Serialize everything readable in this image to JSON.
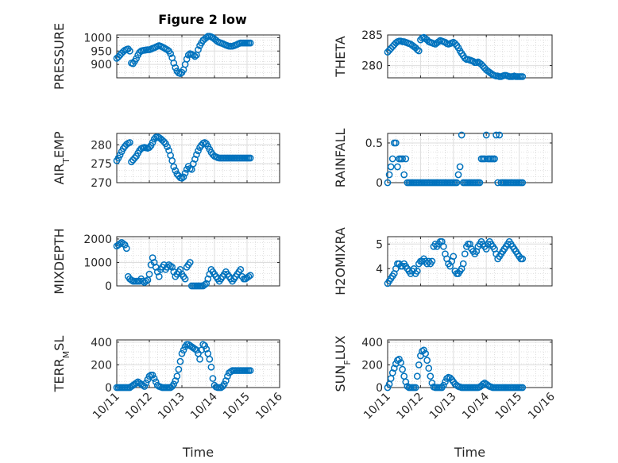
{
  "figure_title": "Figure 2 low",
  "colors": {
    "marker": "#0072BD",
    "grid": "#c8c8c8",
    "axis": "#262626"
  },
  "x_tick_labels": [
    "10/11",
    "10/12",
    "10/13",
    "10/14",
    "10/15",
    "10/16"
  ],
  "x_axis_label": "Time",
  "chart_data": [
    {
      "type": "scatter",
      "ylabel": "PRESSURE",
      "ylim": [
        850,
        1010
      ],
      "yticks": [
        900,
        950,
        1000
      ],
      "xlabel": "",
      "grid": true,
      "x": [
        0.0,
        0.05,
        0.1,
        0.15,
        0.2,
        0.25,
        0.3,
        0.35,
        0.4,
        0.45,
        0.5,
        0.55,
        0.6,
        0.65,
        0.7,
        0.75,
        0.8,
        0.85,
        0.9,
        0.95,
        1.0,
        1.05,
        1.1,
        1.15,
        1.2,
        1.25,
        1.3,
        1.35,
        1.4,
        1.45,
        1.5,
        1.55,
        1.6,
        1.65,
        1.7,
        1.75,
        1.8,
        1.85,
        1.9,
        1.95,
        2.0,
        2.05,
        2.1,
        2.15,
        2.2,
        2.25,
        2.3,
        2.35,
        2.4,
        2.45,
        2.5,
        2.55,
        2.6,
        2.65,
        2.7,
        2.75,
        2.8,
        2.85,
        2.9,
        2.95,
        3.0,
        3.05,
        3.1,
        3.15,
        3.2,
        3.25,
        3.3,
        3.35,
        3.4,
        3.45,
        3.5,
        3.55,
        3.6,
        3.65,
        3.7,
        3.75,
        3.8,
        3.85,
        3.9,
        3.95,
        4.0,
        4.05,
        4.1
      ],
      "y": [
        923,
        928,
        935,
        942,
        948,
        953,
        956,
        958,
        950,
        905,
        903,
        912,
        922,
        935,
        945,
        950,
        952,
        953,
        954,
        955,
        955,
        957,
        960,
        962,
        965,
        968,
        970,
        968,
        965,
        962,
        958,
        955,
        950,
        940,
        925,
        905,
        888,
        875,
        868,
        866,
        870,
        880,
        900,
        920,
        935,
        940,
        938,
        935,
        930,
        935,
        955,
        970,
        980,
        990,
        995,
        1000,
        1005,
        1005,
        1003,
        1000,
        995,
        990,
        985,
        982,
        980,
        978,
        975,
        972,
        970,
        968,
        968,
        968,
        970,
        972,
        975,
        978,
        980,
        980,
        980,
        980,
        980,
        980,
        980
      ]
    },
    {
      "type": "scatter",
      "ylabel": "THETA",
      "ylim": [
        278,
        285
      ],
      "yticks": [
        280,
        285
      ],
      "xlabel": "",
      "grid": true,
      "x": [
        0.0,
        0.05,
        0.1,
        0.15,
        0.2,
        0.25,
        0.3,
        0.35,
        0.4,
        0.45,
        0.5,
        0.55,
        0.6,
        0.65,
        0.7,
        0.75,
        0.8,
        0.85,
        0.9,
        0.95,
        1.0,
        1.05,
        1.1,
        1.15,
        1.2,
        1.25,
        1.3,
        1.35,
        1.4,
        1.45,
        1.5,
        1.55,
        1.6,
        1.65,
        1.7,
        1.75,
        1.8,
        1.85,
        1.9,
        1.95,
        2.0,
        2.05,
        2.1,
        2.15,
        2.2,
        2.25,
        2.3,
        2.35,
        2.4,
        2.45,
        2.5,
        2.55,
        2.6,
        2.65,
        2.7,
        2.75,
        2.8,
        2.85,
        2.9,
        2.95,
        3.0,
        3.05,
        3.1,
        3.15,
        3.2,
        3.25,
        3.3,
        3.35,
        3.4,
        3.45,
        3.5,
        3.55,
        3.6,
        3.65,
        3.7,
        3.75,
        3.8,
        3.85,
        3.9,
        3.95,
        4.0,
        4.05,
        4.1
      ],
      "y": [
        282.2,
        282.5,
        282.8,
        283.1,
        283.4,
        283.7,
        283.9,
        284.0,
        284.0,
        283.9,
        283.9,
        283.8,
        283.7,
        283.6,
        283.5,
        283.3,
        283.1,
        282.9,
        282.6,
        282.4,
        284.2,
        284.5,
        284.6,
        284.4,
        284.2,
        283.9,
        283.8,
        283.7,
        283.6,
        283.5,
        283.7,
        283.9,
        284.1,
        284.0,
        283.9,
        283.8,
        283.6,
        283.5,
        283.6,
        283.7,
        283.8,
        283.6,
        283.3,
        282.9,
        282.4,
        282.0,
        281.6,
        281.2,
        281.0,
        281.0,
        280.9,
        280.8,
        280.7,
        280.5,
        280.5,
        280.6,
        280.4,
        280.2,
        279.9,
        279.6,
        279.3,
        279.1,
        278.9,
        278.7,
        278.5,
        278.4,
        278.3,
        278.3,
        278.2,
        278.2,
        278.3,
        278.4,
        278.4,
        278.3,
        278.2,
        278.2,
        278.2,
        278.3,
        278.2,
        278.2,
        278.2,
        278.2,
        278.2
      ]
    },
    {
      "type": "scatter",
      "ylabel": "AIR_TEMP",
      "ylim": [
        270,
        283
      ],
      "yticks": [
        270,
        275,
        280
      ],
      "xlabel": "",
      "grid": true,
      "x": [
        0.0,
        0.05,
        0.1,
        0.15,
        0.2,
        0.25,
        0.3,
        0.35,
        0.4,
        0.45,
        0.5,
        0.55,
        0.6,
        0.65,
        0.7,
        0.75,
        0.8,
        0.85,
        0.9,
        0.95,
        1.0,
        1.05,
        1.1,
        1.15,
        1.2,
        1.25,
        1.3,
        1.35,
        1.4,
        1.45,
        1.5,
        1.55,
        1.6,
        1.65,
        1.7,
        1.75,
        1.8,
        1.85,
        1.9,
        1.95,
        2.0,
        2.05,
        2.1,
        2.15,
        2.2,
        2.25,
        2.3,
        2.35,
        2.4,
        2.45,
        2.5,
        2.55,
        2.6,
        2.65,
        2.7,
        2.75,
        2.8,
        2.85,
        2.9,
        2.95,
        3.0,
        3.05,
        3.1,
        3.15,
        3.2,
        3.25,
        3.3,
        3.35,
        3.4,
        3.45,
        3.5,
        3.55,
        3.6,
        3.65,
        3.7,
        3.75,
        3.8,
        3.85,
        3.9,
        3.95,
        4.0,
        4.05,
        4.1
      ],
      "y": [
        275.8,
        276.5,
        277.3,
        278.2,
        279.0,
        279.6,
        280.1,
        280.4,
        280.6,
        275.5,
        276.0,
        276.5,
        277.0,
        277.8,
        278.5,
        279.0,
        279.2,
        279.3,
        279.2,
        279.1,
        279.3,
        279.8,
        280.6,
        281.5,
        282.0,
        282.1,
        281.9,
        281.6,
        281.2,
        280.8,
        280.3,
        279.5,
        278.5,
        277.2,
        275.8,
        274.2,
        273.2,
        272.3,
        271.8,
        271.3,
        271.2,
        271.5,
        272.5,
        273.5,
        274.3,
        273.7,
        273.5,
        275.0,
        276.2,
        277.4,
        278.4,
        279.3,
        279.9,
        280.4,
        280.6,
        280.3,
        279.6,
        278.8,
        278.0,
        277.4,
        277.0,
        276.8,
        276.6,
        276.5,
        276.5,
        276.5,
        276.5,
        276.5,
        276.5,
        276.5,
        276.5,
        276.5,
        276.5,
        276.5,
        276.5,
        276.5,
        276.5,
        276.5,
        276.5,
        276.5,
        276.5,
        276.5,
        276.5
      ]
    },
    {
      "type": "scatter",
      "ylabel": "RAINFALL",
      "ylim": [
        0,
        0.62
      ],
      "yticks": [
        0,
        0.5
      ],
      "xlabel": "",
      "grid": true,
      "x": [
        0.0,
        0.05,
        0.1,
        0.15,
        0.2,
        0.25,
        0.3,
        0.35,
        0.4,
        0.45,
        0.5,
        0.55,
        0.6,
        0.65,
        0.7,
        0.75,
        0.8,
        0.85,
        0.9,
        0.95,
        1.0,
        1.05,
        1.1,
        1.15,
        1.2,
        1.25,
        1.3,
        1.35,
        1.4,
        1.45,
        1.5,
        1.55,
        1.6,
        1.65,
        1.7,
        1.75,
        1.8,
        1.85,
        1.9,
        1.95,
        2.0,
        2.05,
        2.1,
        2.15,
        2.2,
        2.25,
        2.3,
        2.35,
        2.4,
        2.45,
        2.5,
        2.55,
        2.6,
        2.65,
        2.7,
        2.75,
        2.8,
        2.85,
        2.9,
        2.95,
        3.0,
        3.05,
        3.1,
        3.15,
        3.2,
        3.25,
        3.3,
        3.35,
        3.4,
        3.45,
        3.5,
        3.55,
        3.6,
        3.65,
        3.7,
        3.75,
        3.8,
        3.85,
        3.9,
        3.95,
        4.0,
        4.05,
        4.1
      ],
      "y": [
        0,
        0.1,
        0.2,
        0.3,
        0.5,
        0.5,
        0.2,
        0.3,
        0.3,
        0.3,
        0.1,
        0.3,
        0,
        0,
        0,
        0,
        0,
        0,
        0,
        0,
        0,
        0,
        0,
        0,
        0,
        0,
        0,
        0,
        0,
        0,
        0,
        0,
        0,
        0,
        0,
        0,
        0,
        0,
        0,
        0,
        0,
        0,
        0,
        0.1,
        0.2,
        0.6,
        0,
        0,
        0,
        0,
        0,
        0,
        0,
        0,
        0,
        0,
        0,
        0.3,
        0.3,
        0.3,
        0.6,
        0.3,
        0.3,
        0.3,
        0.3,
        0.3,
        0.6,
        0,
        0.6,
        0,
        0,
        0,
        0,
        0,
        0,
        0,
        0,
        0,
        0,
        0,
        0,
        0,
        0
      ]
    },
    {
      "type": "scatter",
      "ylabel": "MIXDEPTH",
      "ylim": [
        0,
        2100
      ],
      "yticks": [
        0,
        1000,
        2000
      ],
      "xlabel": "",
      "grid": true,
      "x": [
        0.0,
        0.05,
        0.1,
        0.15,
        0.2,
        0.25,
        0.3,
        0.35,
        0.4,
        0.45,
        0.5,
        0.55,
        0.6,
        0.65,
        0.7,
        0.75,
        0.8,
        0.85,
        0.9,
        0.95,
        1.0,
        1.05,
        1.1,
        1.15,
        1.2,
        1.25,
        1.3,
        1.35,
        1.4,
        1.45,
        1.5,
        1.55,
        1.6,
        1.65,
        1.7,
        1.75,
        1.8,
        1.85,
        1.9,
        1.95,
        2.0,
        2.05,
        2.1,
        2.15,
        2.2,
        2.25,
        2.3,
        2.35,
        2.4,
        2.45,
        2.5,
        2.55,
        2.6,
        2.65,
        2.7,
        2.75,
        2.8,
        2.85,
        2.9,
        2.95,
        3.0,
        3.05,
        3.1,
        3.15,
        3.2,
        3.25,
        3.3,
        3.35,
        3.4,
        3.45,
        3.5,
        3.55,
        3.6,
        3.65,
        3.7,
        3.75,
        3.8,
        3.85,
        3.9,
        3.95,
        4.0,
        4.05,
        4.1
      ],
      "y": [
        1700,
        1750,
        1800,
        1850,
        1800,
        1750,
        1600,
        400,
        300,
        250,
        200,
        200,
        200,
        200,
        200,
        300,
        200,
        150,
        200,
        250,
        500,
        900,
        1200,
        1000,
        800,
        600,
        400,
        700,
        800,
        900,
        700,
        800,
        900,
        850,
        800,
        600,
        400,
        500,
        600,
        700,
        500,
        400,
        300,
        800,
        900,
        1000,
        0,
        0,
        0,
        0,
        0,
        0,
        0,
        0,
        50,
        100,
        300,
        500,
        700,
        600,
        500,
        400,
        300,
        200,
        300,
        400,
        500,
        600,
        500,
        400,
        300,
        200,
        300,
        400,
        500,
        600,
        700,
        400,
        300,
        300,
        350,
        400,
        450
      ]
    },
    {
      "type": "scatter",
      "ylabel": "H2OMIXRA",
      "ylim": [
        3.3,
        5.3
      ],
      "yticks": [
        4,
        5
      ],
      "xlabel": "",
      "grid": true,
      "x": [
        0.0,
        0.05,
        0.1,
        0.15,
        0.2,
        0.25,
        0.3,
        0.35,
        0.4,
        0.45,
        0.5,
        0.55,
        0.6,
        0.65,
        0.7,
        0.75,
        0.8,
        0.85,
        0.9,
        0.95,
        1.0,
        1.05,
        1.1,
        1.15,
        1.2,
        1.25,
        1.3,
        1.35,
        1.4,
        1.45,
        1.5,
        1.55,
        1.6,
        1.65,
        1.7,
        1.75,
        1.8,
        1.85,
        1.9,
        1.95,
        2.0,
        2.05,
        2.1,
        2.15,
        2.2,
        2.25,
        2.3,
        2.35,
        2.4,
        2.45,
        2.5,
        2.55,
        2.6,
        2.65,
        2.7,
        2.75,
        2.8,
        2.85,
        2.9,
        2.95,
        3.0,
        3.05,
        3.1,
        3.15,
        3.2,
        3.25,
        3.3,
        3.35,
        3.4,
        3.45,
        3.5,
        3.55,
        3.6,
        3.65,
        3.7,
        3.75,
        3.8,
        3.85,
        3.9,
        3.95,
        4.0,
        4.05,
        4.1
      ],
      "y": [
        3.4,
        3.5,
        3.6,
        3.7,
        3.8,
        4.0,
        4.2,
        4.2,
        4.1,
        4.1,
        4.2,
        4.1,
        4.0,
        3.9,
        3.8,
        3.9,
        4.0,
        3.8,
        3.9,
        4.2,
        4.3,
        4.3,
        4.4,
        4.3,
        4.2,
        4.3,
        4.2,
        4.3,
        4.9,
        5.0,
        4.9,
        5.0,
        5.1,
        5.1,
        4.9,
        4.6,
        4.4,
        4.2,
        4.1,
        4.3,
        4.5,
        3.9,
        3.8,
        3.8,
        3.9,
        4.0,
        4.2,
        4.6,
        4.9,
        5.0,
        5.0,
        4.8,
        4.7,
        4.6,
        4.7,
        4.9,
        5.0,
        5.1,
        5.0,
        4.9,
        4.8,
        5.0,
        5.1,
        5.0,
        4.9,
        4.8,
        4.6,
        4.4,
        4.5,
        4.6,
        4.7,
        4.8,
        4.9,
        5.0,
        5.1,
        5.0,
        4.9,
        4.8,
        4.7,
        4.6,
        4.5,
        4.4,
        4.4
      ]
    },
    {
      "type": "scatter",
      "ylabel": "TERR_MSL",
      "ylim": [
        0,
        420
      ],
      "yticks": [
        0,
        200,
        400
      ],
      "xlabel": "Time",
      "grid": true,
      "x": [
        0.0,
        0.05,
        0.1,
        0.15,
        0.2,
        0.25,
        0.3,
        0.35,
        0.4,
        0.45,
        0.5,
        0.55,
        0.6,
        0.65,
        0.7,
        0.75,
        0.8,
        0.85,
        0.9,
        0.95,
        1.0,
        1.05,
        1.1,
        1.15,
        1.2,
        1.25,
        1.3,
        1.35,
        1.4,
        1.45,
        1.5,
        1.55,
        1.6,
        1.65,
        1.7,
        1.75,
        1.8,
        1.85,
        1.9,
        1.95,
        2.0,
        2.05,
        2.1,
        2.15,
        2.2,
        2.25,
        2.3,
        2.35,
        2.4,
        2.45,
        2.5,
        2.55,
        2.6,
        2.65,
        2.7,
        2.75,
        2.8,
        2.85,
        2.9,
        2.95,
        3.0,
        3.05,
        3.1,
        3.15,
        3.2,
        3.25,
        3.3,
        3.35,
        3.4,
        3.45,
        3.5,
        3.55,
        3.6,
        3.65,
        3.7,
        3.75,
        3.8,
        3.85,
        3.9,
        3.95,
        4.0,
        4.05,
        4.1
      ],
      "y": [
        0,
        0,
        0,
        0,
        0,
        0,
        0,
        0,
        0,
        10,
        20,
        30,
        40,
        50,
        40,
        30,
        20,
        10,
        40,
        70,
        100,
        110,
        110,
        80,
        50,
        20,
        10,
        5,
        0,
        0,
        0,
        0,
        0,
        0,
        10,
        30,
        60,
        100,
        160,
        230,
        300,
        330,
        360,
        380,
        380,
        370,
        360,
        350,
        340,
        330,
        300,
        250,
        330,
        380,
        370,
        340,
        300,
        250,
        180,
        80,
        20,
        5,
        0,
        0,
        0,
        10,
        30,
        60,
        100,
        130,
        140,
        150,
        150,
        150,
        150,
        150,
        150,
        150,
        150,
        150,
        150,
        150,
        150
      ]
    },
    {
      "type": "scatter",
      "ylabel": "SUN_FLUX",
      "ylim": [
        0,
        420
      ],
      "yticks": [
        0,
        200,
        400
      ],
      "xlabel": "Time",
      "grid": true,
      "x": [
        0.0,
        0.05,
        0.1,
        0.15,
        0.2,
        0.25,
        0.3,
        0.35,
        0.4,
        0.45,
        0.5,
        0.55,
        0.6,
        0.65,
        0.7,
        0.75,
        0.8,
        0.85,
        0.9,
        0.95,
        1.0,
        1.05,
        1.1,
        1.15,
        1.2,
        1.25,
        1.3,
        1.35,
        1.4,
        1.45,
        1.5,
        1.55,
        1.6,
        1.65,
        1.7,
        1.75,
        1.8,
        1.85,
        1.9,
        1.95,
        2.0,
        2.05,
        2.1,
        2.15,
        2.2,
        2.25,
        2.3,
        2.35,
        2.4,
        2.45,
        2.5,
        2.55,
        2.6,
        2.65,
        2.7,
        2.75,
        2.8,
        2.85,
        2.9,
        2.95,
        3.0,
        3.05,
        3.1,
        3.15,
        3.2,
        3.25,
        3.3,
        3.35,
        3.4,
        3.45,
        3.5,
        3.55,
        3.6,
        3.65,
        3.7,
        3.75,
        3.8,
        3.85,
        3.9,
        3.95,
        4.0,
        4.05,
        4.1
      ],
      "y": [
        0,
        30,
        80,
        130,
        170,
        210,
        240,
        250,
        220,
        160,
        100,
        50,
        10,
        0,
        0,
        0,
        0,
        0,
        100,
        200,
        280,
        320,
        330,
        300,
        240,
        170,
        100,
        40,
        5,
        0,
        0,
        0,
        0,
        0,
        20,
        50,
        80,
        90,
        85,
        70,
        50,
        30,
        20,
        10,
        5,
        0,
        0,
        0,
        0,
        0,
        0,
        0,
        0,
        0,
        0,
        0,
        5,
        15,
        30,
        40,
        30,
        20,
        10,
        5,
        0,
        0,
        0,
        0,
        0,
        0,
        0,
        0,
        0,
        0,
        0,
        0,
        0,
        0,
        0,
        0,
        0,
        0,
        0
      ]
    }
  ]
}
